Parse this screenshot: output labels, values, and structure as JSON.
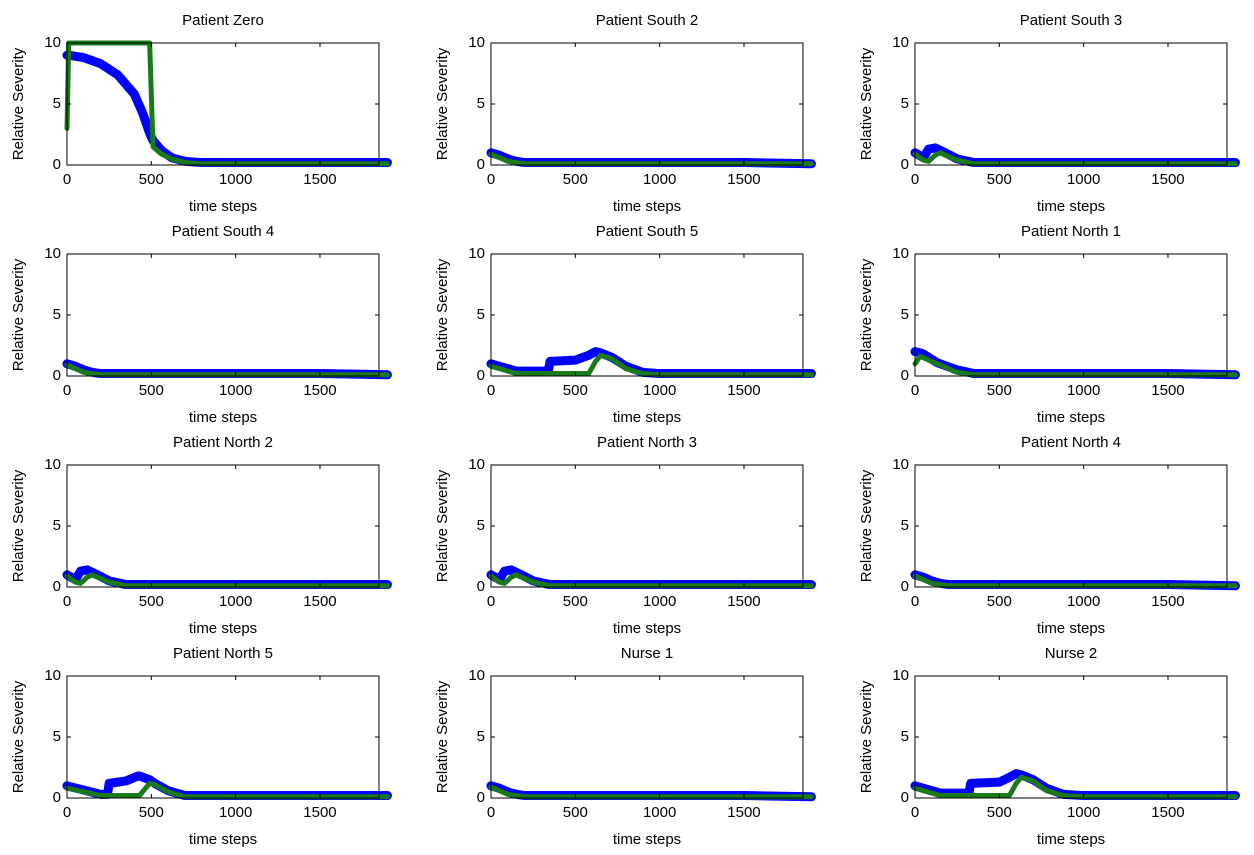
{
  "chart_data": [
    {
      "type": "line",
      "title": "Patient Zero",
      "xlabel": "time steps",
      "ylabel": "Relative Severity",
      "xlim": [
        0,
        1850
      ],
      "ylim": [
        0,
        10
      ],
      "xticks": [
        0,
        500,
        1000,
        1500
      ],
      "yticks": [
        0,
        5,
        10
      ],
      "x": [
        0,
        10,
        100,
        200,
        300,
        400,
        450,
        490,
        510,
        560,
        620,
        700,
        800,
        1000,
        1500,
        1900
      ],
      "series": [
        {
          "color": "#0000ff",
          "values": [
            9,
            9,
            8.8,
            8.3,
            7.4,
            5.8,
            4.2,
            2.6,
            2.0,
            1.2,
            0.6,
            0.3,
            0.2,
            0.2,
            0.2,
            0.2
          ]
        },
        {
          "color": "#1a7a1a",
          "values": [
            3,
            10,
            10,
            10,
            10,
            10,
            10,
            10,
            1.5,
            0.9,
            0.5,
            0.2,
            0.1,
            0.1,
            0.1,
            0.1
          ]
        }
      ]
    },
    {
      "type": "line",
      "title": "Patient South 2",
      "xlabel": "time steps",
      "ylabel": "Relative Severity",
      "xlim": [
        0,
        1850
      ],
      "ylim": [
        0,
        10
      ],
      "xticks": [
        0,
        500,
        1000,
        1500
      ],
      "yticks": [
        0,
        5,
        10
      ],
      "x": [
        0,
        50,
        100,
        150,
        200,
        300,
        500,
        1000,
        1500,
        1900
      ],
      "series": [
        {
          "color": "#0000ff",
          "values": [
            1,
            0.8,
            0.5,
            0.3,
            0.2,
            0.2,
            0.2,
            0.2,
            0.2,
            0.1
          ]
        },
        {
          "color": "#1a7a1a",
          "values": [
            0.9,
            0.6,
            0.3,
            0.2,
            0.1,
            0.1,
            0.1,
            0.1,
            0.1,
            0.1
          ]
        }
      ]
    },
    {
      "type": "line",
      "title": "Patient South 3",
      "xlabel": "time steps",
      "ylabel": "Relative Severity",
      "xlim": [
        0,
        1850
      ],
      "ylim": [
        0,
        10
      ],
      "xticks": [
        0,
        500,
        1000,
        1500
      ],
      "yticks": [
        0,
        5,
        10
      ],
      "x": [
        0,
        50,
        80,
        120,
        150,
        180,
        250,
        350,
        500,
        1000,
        1500,
        1900
      ],
      "series": [
        {
          "color": "#0000ff",
          "values": [
            1,
            0.6,
            1.3,
            1.4,
            1.2,
            1.0,
            0.5,
            0.2,
            0.2,
            0.2,
            0.2,
            0.2
          ]
        },
        {
          "color": "#1a7a1a",
          "values": [
            0.9,
            0.4,
            0.3,
            0.8,
            1.0,
            0.8,
            0.4,
            0.1,
            0.1,
            0.1,
            0.1,
            0.1
          ]
        }
      ]
    },
    {
      "type": "line",
      "title": "Patient South 4",
      "xlabel": "time steps",
      "ylabel": "Relative Severity",
      "xlim": [
        0,
        1850
      ],
      "ylim": [
        0,
        10
      ],
      "xticks": [
        0,
        500,
        1000,
        1500
      ],
      "yticks": [
        0,
        5,
        10
      ],
      "x": [
        0,
        50,
        100,
        150,
        200,
        300,
        500,
        1000,
        1500,
        1900
      ],
      "series": [
        {
          "color": "#0000ff",
          "values": [
            1,
            0.8,
            0.5,
            0.3,
            0.2,
            0.2,
            0.2,
            0.2,
            0.2,
            0.1
          ]
        },
        {
          "color": "#1a7a1a",
          "values": [
            0.9,
            0.6,
            0.3,
            0.2,
            0.1,
            0.1,
            0.1,
            0.1,
            0.1,
            0.1
          ]
        }
      ]
    },
    {
      "type": "line",
      "title": "Patient South 5",
      "xlabel": "time steps",
      "ylabel": "Relative Severity",
      "xlim": [
        0,
        1850
      ],
      "ylim": [
        0,
        10
      ],
      "xticks": [
        0,
        500,
        1000,
        1500
      ],
      "yticks": [
        0,
        5,
        10
      ],
      "x": [
        0,
        150,
        340,
        350,
        500,
        580,
        620,
        650,
        720,
        800,
        900,
        1000,
        1500,
        1900
      ],
      "series": [
        {
          "color": "#0000ff",
          "values": [
            1,
            0.4,
            0.4,
            1.2,
            1.3,
            1.7,
            2.0,
            1.9,
            1.5,
            0.8,
            0.3,
            0.2,
            0.2,
            0.2
          ]
        },
        {
          "color": "#1a7a1a",
          "values": [
            0.8,
            0.2,
            0.2,
            0.2,
            0.2,
            0.2,
            1.2,
            1.7,
            1.4,
            0.6,
            0.2,
            0.1,
            0.1,
            0.1
          ]
        }
      ]
    },
    {
      "type": "line",
      "title": "Patient North 1",
      "xlabel": "time steps",
      "ylabel": "Relative Severity",
      "xlim": [
        0,
        1850
      ],
      "ylim": [
        0,
        10
      ],
      "xticks": [
        0,
        500,
        1000,
        1500
      ],
      "yticks": [
        0,
        5,
        10
      ],
      "x": [
        0,
        30,
        50,
        130,
        150,
        230,
        250,
        350,
        500,
        1000,
        1500,
        1900
      ],
      "series": [
        {
          "color": "#0000ff",
          "values": [
            2,
            1.9,
            1.8,
            1.1,
            1.0,
            0.6,
            0.5,
            0.2,
            0.2,
            0.2,
            0.2,
            0.1
          ]
        },
        {
          "color": "#1a7a1a",
          "values": [
            1,
            1.6,
            1.5,
            1.0,
            0.9,
            0.4,
            0.3,
            0.1,
            0.1,
            0.1,
            0.1,
            0.1
          ]
        }
      ]
    },
    {
      "type": "line",
      "title": "Patient North 2",
      "xlabel": "time steps",
      "ylabel": "Relative Severity",
      "xlim": [
        0,
        1850
      ],
      "ylim": [
        0,
        10
      ],
      "xticks": [
        0,
        500,
        1000,
        1500
      ],
      "yticks": [
        0,
        5,
        10
      ],
      "x": [
        0,
        50,
        80,
        120,
        150,
        180,
        250,
        350,
        500,
        1000,
        1500,
        1900
      ],
      "series": [
        {
          "color": "#0000ff",
          "values": [
            1,
            0.6,
            1.3,
            1.4,
            1.2,
            1.0,
            0.5,
            0.2,
            0.2,
            0.2,
            0.2,
            0.2
          ]
        },
        {
          "color": "#1a7a1a",
          "values": [
            0.9,
            0.4,
            0.3,
            0.8,
            1.0,
            0.8,
            0.4,
            0.1,
            0.1,
            0.1,
            0.1,
            0.1
          ]
        }
      ]
    },
    {
      "type": "line",
      "title": "Patient North 3",
      "xlabel": "time steps",
      "ylabel": "Relative Severity",
      "xlim": [
        0,
        1850
      ],
      "ylim": [
        0,
        10
      ],
      "xticks": [
        0,
        500,
        1000,
        1500
      ],
      "yticks": [
        0,
        5,
        10
      ],
      "x": [
        0,
        50,
        80,
        120,
        150,
        180,
        250,
        350,
        500,
        1000,
        1500,
        1900
      ],
      "series": [
        {
          "color": "#0000ff",
          "values": [
            1,
            0.6,
            1.3,
            1.4,
            1.2,
            1.0,
            0.5,
            0.2,
            0.2,
            0.2,
            0.2,
            0.2
          ]
        },
        {
          "color": "#1a7a1a",
          "values": [
            0.9,
            0.4,
            0.3,
            0.8,
            1.0,
            0.8,
            0.4,
            0.1,
            0.1,
            0.1,
            0.1,
            0.1
          ]
        }
      ]
    },
    {
      "type": "line",
      "title": "Patient North 4",
      "xlabel": "time steps",
      "ylabel": "Relative Severity",
      "xlim": [
        0,
        1850
      ],
      "ylim": [
        0,
        10
      ],
      "xticks": [
        0,
        500,
        1000,
        1500
      ],
      "yticks": [
        0,
        5,
        10
      ],
      "x": [
        0,
        50,
        100,
        150,
        200,
        300,
        500,
        1000,
        1500,
        1900
      ],
      "series": [
        {
          "color": "#0000ff",
          "values": [
            1,
            0.8,
            0.5,
            0.3,
            0.2,
            0.2,
            0.2,
            0.2,
            0.2,
            0.1
          ]
        },
        {
          "color": "#1a7a1a",
          "values": [
            0.9,
            0.6,
            0.3,
            0.2,
            0.1,
            0.1,
            0.1,
            0.1,
            0.1,
            0.1
          ]
        }
      ]
    },
    {
      "type": "line",
      "title": "Patient North 5",
      "xlabel": "time steps",
      "ylabel": "Relative Severity",
      "xlim": [
        0,
        1850
      ],
      "ylim": [
        0,
        10
      ],
      "xticks": [
        0,
        500,
        1000,
        1500
      ],
      "yticks": [
        0,
        5,
        10
      ],
      "x": [
        0,
        200,
        240,
        250,
        350,
        420,
        430,
        490,
        520,
        600,
        650,
        700,
        1000,
        1500,
        1900
      ],
      "series": [
        {
          "color": "#0000ff",
          "values": [
            1,
            0.3,
            0.3,
            1.2,
            1.4,
            1.8,
            1.8,
            1.5,
            1.2,
            0.6,
            0.4,
            0.2,
            0.2,
            0.2,
            0.2
          ]
        },
        {
          "color": "#1a7a1a",
          "values": [
            0.8,
            0.2,
            0.2,
            0.2,
            0.2,
            0.2,
            0.2,
            1.2,
            1.1,
            0.5,
            0.3,
            0.1,
            0.1,
            0.1,
            0.1
          ]
        }
      ]
    },
    {
      "type": "line",
      "title": "Nurse 1",
      "xlabel": "time steps",
      "ylabel": "Relative Severity",
      "xlim": [
        0,
        1850
      ],
      "ylim": [
        0,
        10
      ],
      "xticks": [
        0,
        500,
        1000,
        1500
      ],
      "yticks": [
        0,
        5,
        10
      ],
      "x": [
        0,
        50,
        100,
        150,
        200,
        300,
        500,
        1000,
        1500,
        1900
      ],
      "series": [
        {
          "color": "#0000ff",
          "values": [
            1,
            0.8,
            0.5,
            0.3,
            0.2,
            0.2,
            0.2,
            0.2,
            0.2,
            0.1
          ]
        },
        {
          "color": "#1a7a1a",
          "values": [
            0.9,
            0.6,
            0.3,
            0.2,
            0.1,
            0.1,
            0.1,
            0.1,
            0.1,
            0.1
          ]
        }
      ]
    },
    {
      "type": "line",
      "title": "Nurse 2",
      "xlabel": "time steps",
      "ylabel": "Relative Severity",
      "xlim": [
        0,
        1850
      ],
      "ylim": [
        0,
        10
      ],
      "xticks": [
        0,
        500,
        1000,
        1500
      ],
      "yticks": [
        0,
        5,
        10
      ],
      "x": [
        0,
        150,
        320,
        330,
        500,
        560,
        600,
        630,
        700,
        780,
        880,
        1000,
        1500,
        1900
      ],
      "series": [
        {
          "color": "#0000ff",
          "values": [
            1,
            0.4,
            0.4,
            1.2,
            1.3,
            1.7,
            2.0,
            1.9,
            1.5,
            0.8,
            0.3,
            0.2,
            0.2,
            0.2
          ]
        },
        {
          "color": "#1a7a1a",
          "values": [
            0.8,
            0.2,
            0.2,
            0.2,
            0.2,
            0.2,
            1.2,
            1.7,
            1.4,
            0.6,
            0.2,
            0.1,
            0.1,
            0.1
          ]
        }
      ]
    }
  ]
}
